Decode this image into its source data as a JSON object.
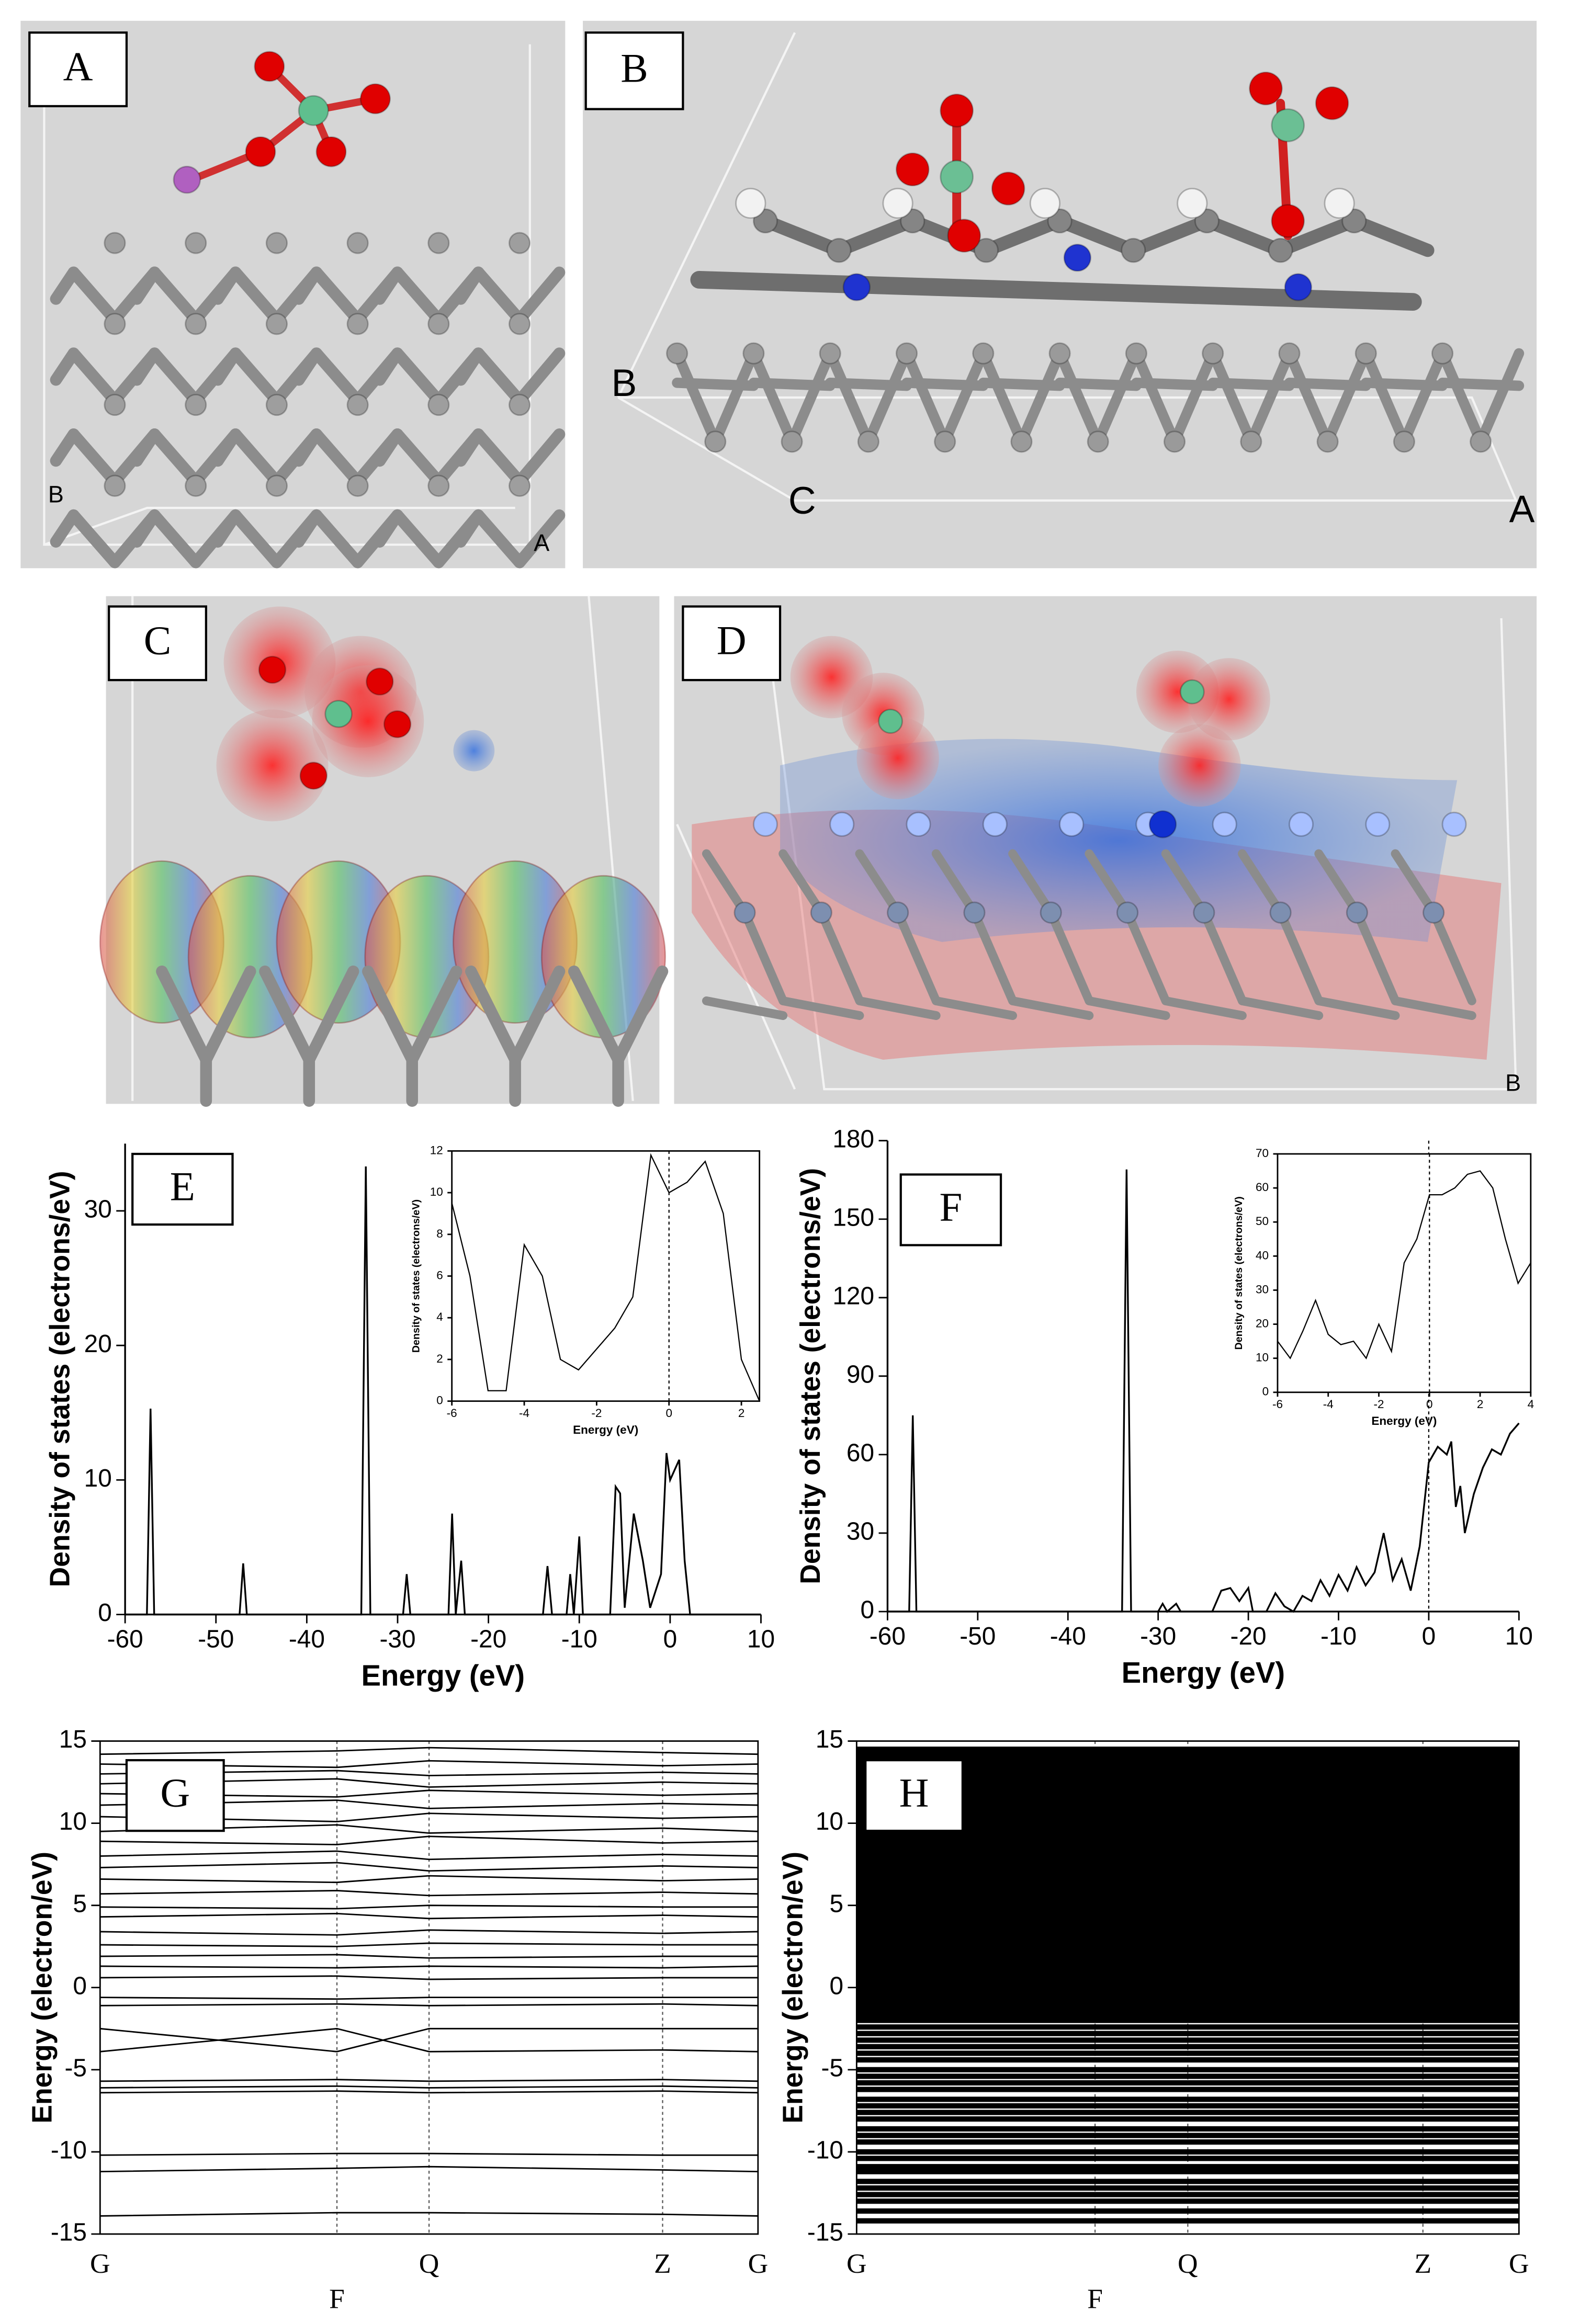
{
  "image_panels": [
    {
      "label": "A",
      "corner_labels": [
        "B",
        "A"
      ]
    },
    {
      "label": "B",
      "corner_labels": [
        "B",
        "C",
        "A"
      ]
    },
    {
      "label": "C"
    },
    {
      "label": "D",
      "corner_labels": [
        "B"
      ]
    }
  ],
  "chart_data": [
    {
      "type": "line",
      "label": "E",
      "xlabel": "Energy (eV)",
      "ylabel": "Density of states (electrons/eV)",
      "x": [
        -60,
        -57.6,
        -57.2,
        -56.8,
        -47.4,
        -47,
        -46.6,
        -34,
        -33.5,
        -33,
        -29.4,
        -29,
        -28.6,
        -24.4,
        -24,
        -23.6,
        -23,
        -22.6,
        -14,
        -13.5,
        -13,
        -11.4,
        -11,
        -10.6,
        -10,
        -9.6,
        -6.6,
        -6,
        -5.5,
        -5,
        -4,
        -3,
        -2.2,
        -1,
        -0.4,
        0,
        1,
        1.6,
        2.2,
        10
      ],
      "series": [
        {
          "color": "#000000",
          "values": [
            0,
            0,
            15.3,
            0,
            0,
            3.8,
            0,
            0,
            33.3,
            0,
            0,
            3,
            0,
            0,
            7.5,
            0,
            4,
            0,
            0,
            3.6,
            0,
            0,
            3,
            0,
            5.8,
            0,
            0,
            9.5,
            9,
            0.5,
            7.5,
            4,
            0.5,
            3,
            12,
            10,
            11.5,
            4,
            0,
            0
          ]
        }
      ],
      "xlim": [
        -60,
        10
      ],
      "xticks": [
        -60,
        -50,
        -40,
        -30,
        -20,
        -10,
        0,
        10
      ],
      "ylim": [
        0,
        35
      ],
      "yticks": [
        0,
        10,
        20,
        30
      ]
    },
    {
      "type": "line",
      "xlabel": "Energy (eV)",
      "ylabel": "Density of states (electrons/eV)",
      "x": [
        -6,
        -5.5,
        -5,
        -4.5,
        -4,
        -3.5,
        -3,
        -2.5,
        -2,
        -1.5,
        -1,
        -0.5,
        0,
        0.5,
        1,
        1.5,
        2,
        2.5
      ],
      "series": [
        {
          "color": "#000000",
          "values": [
            9.5,
            6,
            0.5,
            0.5,
            7.5,
            6,
            2,
            1.5,
            2.5,
            3.5,
            5,
            11.8,
            10,
            10.5,
            11.5,
            9,
            2,
            0
          ]
        }
      ],
      "xlim": [
        -6,
        2.5
      ],
      "xticks": [
        -6,
        -4,
        -2,
        0,
        2
      ],
      "ylim": [
        0,
        12
      ],
      "yticks": [
        0,
        2,
        4,
        6,
        8,
        10,
        12
      ],
      "vline": 0
    },
    {
      "type": "line",
      "label": "F",
      "xlabel": "Energy (eV)",
      "ylabel": "Density of states (electrons/eV)",
      "x": [
        -60,
        -57.6,
        -57.2,
        -56.8,
        -34,
        -33.5,
        -33,
        -30,
        -29.5,
        -29,
        -28,
        -27.5,
        -24,
        -23,
        -22,
        -21,
        -20,
        -19.5,
        -18,
        -17,
        -16,
        -15,
        -14,
        -13,
        -12,
        -11,
        -10,
        -9,
        -8,
        -7,
        -6,
        -5,
        -4,
        -3,
        -2,
        -1,
        0,
        0.5,
        1,
        2,
        2.5,
        3,
        3.5,
        4,
        5,
        6,
        7,
        8,
        9,
        10
      ],
      "series": [
        {
          "color": "#000000",
          "values": [
            0,
            0,
            75,
            0,
            0,
            169,
            0,
            0,
            3,
            0,
            3,
            0,
            0,
            8,
            9,
            4,
            9,
            0,
            0,
            7,
            2,
            0,
            6,
            4,
            12,
            6,
            14,
            8,
            17,
            10,
            15,
            30,
            12,
            20,
            8,
            25,
            57,
            60,
            63,
            60,
            65,
            40,
            48,
            30,
            45,
            55,
            62,
            60,
            68,
            72
          ]
        }
      ],
      "xlim": [
        -60,
        10
      ],
      "xticks": [
        -60,
        -50,
        -40,
        -30,
        -20,
        -10,
        0,
        10
      ],
      "ylim": [
        0,
        180
      ],
      "yticks": [
        0,
        30,
        60,
        90,
        120,
        150,
        180
      ],
      "vline": 0
    },
    {
      "type": "line",
      "xlabel": "Energy (eV)",
      "ylabel": "Density of states (electrons/eV)",
      "x": [
        -6,
        -5.5,
        -5,
        -4.5,
        -4,
        -3.5,
        -3,
        -2.5,
        -2,
        -1.5,
        -1,
        -0.5,
        0,
        0.5,
        1,
        1.5,
        2,
        2.5,
        3,
        3.5,
        4
      ],
      "series": [
        {
          "color": "#000000",
          "values": [
            15,
            10,
            18,
            27,
            17,
            14,
            15,
            10,
            20,
            12,
            38,
            45,
            58,
            58,
            60,
            64,
            65,
            60,
            45,
            32,
            38
          ]
        }
      ],
      "xlim": [
        -6,
        4
      ],
      "xticks": [
        -6,
        -4,
        -2,
        0,
        2,
        4
      ],
      "ylim": [
        0,
        70
      ],
      "yticks": [
        0,
        10,
        20,
        30,
        40,
        50,
        60,
        70
      ],
      "vline": 0
    },
    {
      "type": "band",
      "label": "G",
      "ylabel": "Energy (electron/eV)",
      "color": "#000000",
      "line_width": 1,
      "x": [
        0,
        0.36,
        0.5,
        0.855,
        1
      ],
      "xlim": [
        0,
        1
      ],
      "xticks": [
        {
          "value": 0,
          "label": "G"
        },
        {
          "value": 0.36,
          "label": "F"
        },
        {
          "value": 0.5,
          "label": "Q"
        },
        {
          "value": 0.855,
          "label": "Z"
        },
        {
          "value": 1,
          "label": "G"
        }
      ],
      "ylim": [
        -15,
        15
      ],
      "yticks": [
        -15,
        -10,
        -5,
        0,
        5,
        10,
        15
      ],
      "series": [
        {
          "values": [
            -13.9,
            -13.7,
            -13.7,
            -13.8,
            -13.9
          ]
        },
        {
          "values": [
            -11.2,
            -11,
            -10.9,
            -11.1,
            -11.2
          ]
        },
        {
          "values": [
            -10.2,
            -10.1,
            -10.1,
            -10.2,
            -10.2
          ]
        },
        {
          "values": [
            -6.4,
            -6.3,
            -6.4,
            -6.3,
            -6.4
          ]
        },
        {
          "values": [
            -6.1,
            -6,
            -6.1,
            -6,
            -6.1
          ]
        },
        {
          "values": [
            -5.7,
            -5.6,
            -5.7,
            -5.6,
            -5.7
          ]
        },
        {
          "values": [
            -3.9,
            -2.5,
            -3.9,
            -3.8,
            -3.9
          ]
        },
        {
          "values": [
            -2.5,
            -3.9,
            -2.5,
            -2.5,
            -2.5
          ]
        },
        {
          "values": [
            -1.1,
            -1,
            -1.1,
            -1,
            -1.1
          ]
        },
        {
          "values": [
            -0.6,
            -0.7,
            -0.6,
            -0.6,
            -0.6
          ]
        },
        {
          "values": [
            0.6,
            0.7,
            0.5,
            0.6,
            0.6
          ]
        },
        {
          "values": [
            1.3,
            1.2,
            1.3,
            1.2,
            1.3
          ]
        },
        {
          "values": [
            1.9,
            2,
            1.8,
            1.9,
            1.9
          ]
        },
        {
          "values": [
            2.6,
            2.5,
            2.7,
            2.6,
            2.6
          ]
        },
        {
          "values": [
            3.4,
            3.2,
            3.5,
            3.3,
            3.4
          ]
        },
        {
          "values": [
            4.3,
            4.5,
            4.2,
            4.4,
            4.3
          ]
        },
        {
          "values": [
            4.9,
            4.8,
            5,
            4.9,
            4.9
          ]
        },
        {
          "values": [
            5.7,
            5.9,
            5.6,
            5.8,
            5.7
          ]
        },
        {
          "values": [
            6.6,
            6.4,
            6.8,
            6.5,
            6.6
          ]
        },
        {
          "values": [
            7.3,
            7.6,
            7.1,
            7.4,
            7.3
          ]
        },
        {
          "values": [
            8,
            8.3,
            7.8,
            8.1,
            8
          ]
        },
        {
          "values": [
            8.9,
            8.7,
            9.2,
            8.8,
            8.9
          ]
        },
        {
          "values": [
            9.5,
            9.9,
            9.4,
            9.7,
            9.5
          ]
        },
        {
          "values": [
            10.4,
            10.1,
            10.6,
            10.3,
            10.4
          ]
        },
        {
          "values": [
            11.1,
            11.4,
            10.9,
            11.2,
            11.1
          ]
        },
        {
          "values": [
            11.8,
            11.6,
            12,
            11.7,
            11.8
          ]
        },
        {
          "values": [
            12.4,
            12.7,
            12.2,
            12.5,
            12.4
          ]
        },
        {
          "values": [
            13,
            13.2,
            12.9,
            13.1,
            13
          ]
        },
        {
          "values": [
            13.6,
            13.4,
            13.8,
            13.5,
            13.6
          ]
        },
        {
          "values": [
            14.2,
            14.4,
            14.6,
            14.3,
            14.2
          ]
        }
      ]
    },
    {
      "type": "band",
      "label": "H",
      "ylabel": "Energy (electron/eV)",
      "color": "#000000",
      "line_width": 3.6,
      "xlim": [
        0,
        1
      ],
      "xticks": [
        {
          "value": 0,
          "label": "G"
        },
        {
          "value": 0.36,
          "label": "F"
        },
        {
          "value": 0.5,
          "label": "Q"
        },
        {
          "value": 0.855,
          "label": "Z"
        },
        {
          "value": 1,
          "label": "G"
        }
      ],
      "ylim": [
        -15,
        15
      ],
      "yticks": [
        -15,
        -10,
        -5,
        0,
        5,
        10,
        15
      ],
      "bands": [
        -14.2,
        -13.6,
        -13,
        -12.6,
        -12.2,
        -11.8,
        -11.2,
        -10.9,
        -10.4,
        -10,
        -9.4,
        -9,
        -8.6,
        -8,
        -7.6,
        -7.2,
        -6.8,
        -6.2,
        -5.8,
        -5.4,
        -5,
        -4.4,
        -4,
        -3.6,
        -3.2,
        -2.8,
        -2.4,
        -2,
        -1.7,
        -1.4,
        -1.1,
        -0.8,
        -0.5,
        -0.2,
        0.1,
        0.4,
        0.7,
        1,
        1.3,
        1.6,
        1.9,
        2.2,
        2.5,
        2.8,
        3.1,
        3.4,
        3.7,
        4,
        4.3,
        4.6,
        4.9,
        5.2,
        5.5,
        5.8,
        6.1,
        6.4,
        6.7,
        7,
        7.3,
        7.6,
        7.9,
        8.2,
        8.5,
        8.8,
        9.1,
        9.4,
        9.7,
        10,
        10.3,
        10.6,
        10.9,
        11.2,
        11.5,
        11.8,
        12.1,
        12.4,
        12.7,
        13,
        13.3,
        13.6,
        13.9,
        14.2,
        14.5
      ]
    }
  ]
}
